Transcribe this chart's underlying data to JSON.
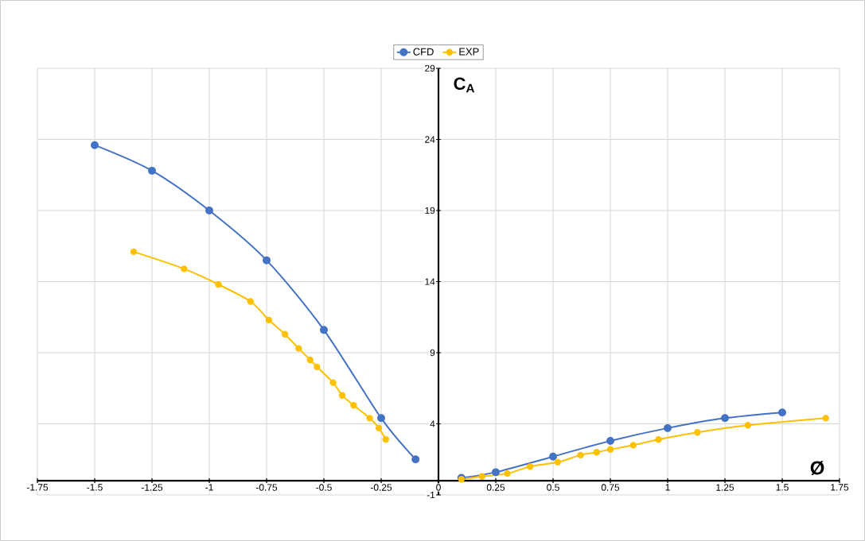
{
  "chart_data": {
    "type": "line",
    "xlabel": "Ø",
    "ylabel": "C$_{A}$",
    "xlim": [
      -1.75,
      1.75
    ],
    "ylim": [
      -1,
      29
    ],
    "xticks": [
      -1.75,
      -1.5,
      -1.25,
      -1,
      -0.75,
      -0.5,
      -0.25,
      0,
      0.25,
      0.5,
      0.75,
      1,
      1.25,
      1.5,
      1.75
    ],
    "yticks": [
      -1,
      4,
      9,
      14,
      19,
      24,
      29
    ],
    "grid": true,
    "legend": "top",
    "marker": "circle",
    "series": [
      {
        "name": "CFD",
        "color": "#4472c4",
        "x": [
          -1.5,
          -1.25,
          -1,
          -0.75,
          -0.5,
          -0.25,
          -0.1,
          null,
          0.1,
          0.25,
          0.5,
          0.75,
          1,
          1.25,
          1.5
        ],
        "values": [
          23.6,
          21.8,
          19.0,
          15.5,
          10.6,
          4.4,
          1.5,
          null,
          0.2,
          0.6,
          1.7,
          2.8,
          3.7,
          4.4,
          4.8
        ]
      },
      {
        "name": "EXP",
        "color": "#ffc000",
        "x": [
          -1.33,
          -1.11,
          -0.96,
          -0.82,
          -0.74,
          -0.67,
          -0.61,
          -0.56,
          -0.53,
          -0.46,
          -0.42,
          -0.37,
          -0.3,
          -0.26,
          -0.23,
          null,
          0.1,
          0.19,
          0.3,
          0.4,
          0.52,
          0.62,
          0.69,
          0.75,
          0.85,
          0.96,
          1.13,
          1.35,
          1.69
        ],
        "values": [
          16.1,
          14.9,
          13.8,
          12.6,
          11.3,
          10.3,
          9.3,
          8.5,
          8.0,
          6.9,
          6.0,
          5.3,
          4.4,
          3.7,
          2.9,
          null,
          0.1,
          0.3,
          0.5,
          1.0,
          1.3,
          1.8,
          2.0,
          2.2,
          2.5,
          2.9,
          3.4,
          3.9,
          4.4
        ]
      }
    ]
  }
}
